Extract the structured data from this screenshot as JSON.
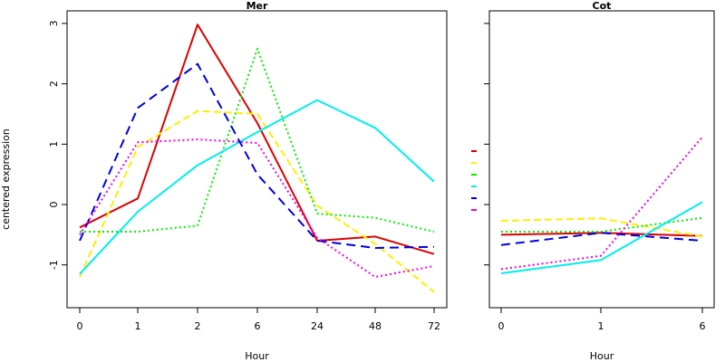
{
  "chart_data": {
    "type": "line",
    "ylabel": "centered expression",
    "ylim": [
      -1.6,
      3.1
    ],
    "yticks": [
      -1,
      0,
      1,
      2,
      3
    ],
    "legend_placement": "between panels",
    "grid": false,
    "series_styles": [
      {
        "color": "#dd0000",
        "dash": "solid"
      },
      {
        "color": "#ffee00",
        "dash": "dashed"
      },
      {
        "color": "#00ee00",
        "dash": "dotted"
      },
      {
        "color": "#00eeee",
        "dash": "solid"
      },
      {
        "color": "#0000dd",
        "dash": "longdash"
      },
      {
        "color": "#ee00ee",
        "dash": "dotted"
      }
    ],
    "panels": [
      {
        "title": "Mer",
        "xlabel": "Hour",
        "categories": [
          "0",
          "1",
          "2",
          "6",
          "24",
          "48",
          "72"
        ],
        "series": [
          {
            "values": [
              -0.38,
              0.1,
              2.98,
              1.35,
              -0.6,
              -0.53,
              -0.82
            ]
          },
          {
            "values": [
              -1.2,
              0.95,
              1.55,
              1.5,
              -0.02,
              -0.65,
              -1.45
            ]
          },
          {
            "values": [
              -0.45,
              -0.45,
              -0.35,
              2.58,
              -0.15,
              -0.22,
              -0.45
            ]
          },
          {
            "values": [
              -1.15,
              -0.12,
              0.65,
              1.2,
              1.73,
              1.27,
              0.38
            ]
          },
          {
            "values": [
              -0.6,
              1.6,
              2.33,
              0.5,
              -0.6,
              -0.72,
              -0.7
            ]
          },
          {
            "values": [
              -0.5,
              1.03,
              1.08,
              1.02,
              -0.55,
              -1.2,
              -1.02
            ]
          }
        ]
      },
      {
        "title": "Cot",
        "xlabel": "Hour",
        "categories": [
          "0",
          "1",
          "6"
        ],
        "series": [
          {
            "values": [
              -0.5,
              -0.47,
              -0.52
            ]
          },
          {
            "values": [
              -0.27,
              -0.23,
              -0.53
            ]
          },
          {
            "values": [
              -0.45,
              -0.45,
              -0.22
            ]
          },
          {
            "values": [
              -1.14,
              -0.92,
              0.04
            ]
          },
          {
            "values": [
              -0.67,
              -0.47,
              -0.6
            ]
          },
          {
            "values": [
              -1.07,
              -0.85,
              1.12
            ]
          }
        ]
      }
    ]
  }
}
